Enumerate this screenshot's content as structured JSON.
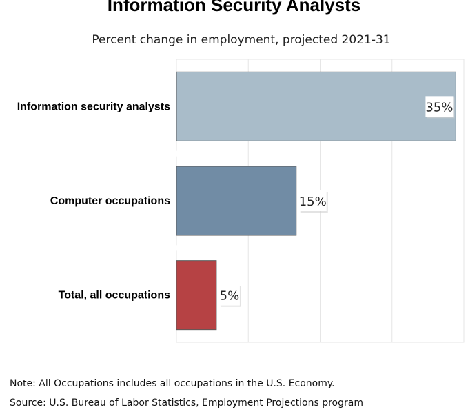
{
  "chart_data": {
    "type": "bar",
    "orientation": "horizontal",
    "title": "Information Security Analysts",
    "subtitle": "Percent change in employment, projected 2021-31",
    "categories": [
      "Information security analysts",
      "Computer occupations",
      "Total, all occupations"
    ],
    "values": [
      35,
      15,
      5
    ],
    "value_labels": [
      "35%",
      "15%",
      "5%"
    ],
    "colors": [
      "#a9bcc9",
      "#718ca5",
      "#b64244"
    ],
    "xlim": [
      0,
      36
    ],
    "grid": true,
    "xlabel": "",
    "ylabel": ""
  },
  "notes": [
    "Note: All Occupations includes all occupations in the U.S. Economy.",
    "Source: U.S. Bureau of Labor Statistics, Employment Projections program"
  ]
}
